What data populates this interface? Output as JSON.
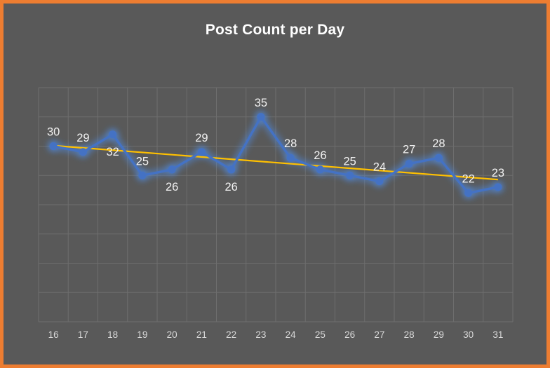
{
  "frame": {
    "border_color": "#ED7D31",
    "background_color": "#595959"
  },
  "chart_data": {
    "type": "line",
    "title": "Post Count per Day",
    "xlabel": "",
    "ylabel": "",
    "categories": [
      "16",
      "17",
      "18",
      "19",
      "20",
      "21",
      "22",
      "23",
      "24",
      "25",
      "26",
      "27",
      "28",
      "29",
      "30",
      "31"
    ],
    "series": [
      {
        "name": "Post Count",
        "values": [
          30,
          29,
          32,
          25,
          26,
          29,
          26,
          35,
          28,
          26,
          25,
          24,
          27,
          28,
          22,
          23
        ],
        "color": "#4472C4",
        "glow_color": "#4E8AE0",
        "marker": "circle"
      }
    ],
    "trendline": {
      "type": "linear",
      "color": "#FFC000"
    },
    "ylim": [
      0,
      40
    ],
    "y_gridline_step": 5,
    "grid": true,
    "grid_color": "#6E6E6E",
    "label_color": "#F2F2F2",
    "axis_label_color": "#D9D9D9",
    "data_label_placement": [
      "above",
      "above",
      "below",
      "above",
      "below",
      "above",
      "below",
      "above",
      "above",
      "above",
      "above",
      "above",
      "above",
      "above",
      "above",
      "above"
    ],
    "legend_position": "none"
  }
}
